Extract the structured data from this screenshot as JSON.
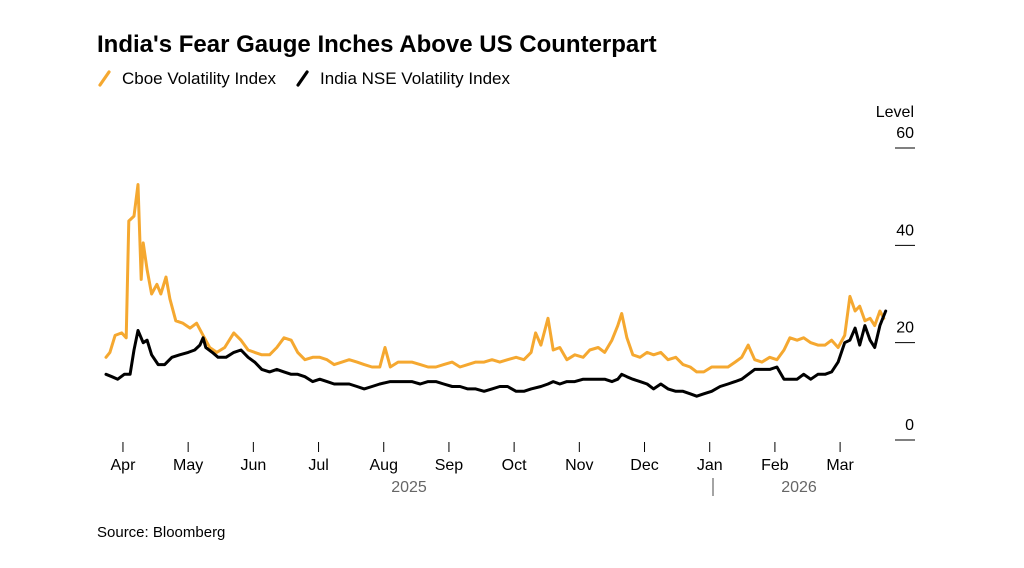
{
  "chart_data": {
    "type": "line",
    "title": "India's Fear Gauge Inches Above US Counterpart",
    "y_axis_label": "Level",
    "source": "Source: Bloomberg",
    "year_labels": [
      "2025",
      "2026"
    ],
    "xlim": [
      3.7,
      15.75
    ],
    "xticks": [
      {
        "value": 4,
        "label": "Apr"
      },
      {
        "value": 5,
        "label": "May"
      },
      {
        "value": 6,
        "label": "Jun"
      },
      {
        "value": 7,
        "label": "Jul"
      },
      {
        "value": 8,
        "label": "Aug"
      },
      {
        "value": 9,
        "label": "Sep"
      },
      {
        "value": 10,
        "label": "Oct"
      },
      {
        "value": 11,
        "label": "Nov"
      },
      {
        "value": 12,
        "label": "Dec"
      },
      {
        "value": 13,
        "label": "Jan"
      },
      {
        "value": 14,
        "label": "Feb"
      },
      {
        "value": 15,
        "label": "Mar"
      }
    ],
    "ylim": [
      0,
      60
    ],
    "yticks": [
      0,
      20,
      40,
      60
    ],
    "series": [
      {
        "name": "Cboe Volatility Index",
        "color": "#f5a830",
        "x": [
          3.74,
          3.8,
          3.88,
          3.98,
          4.05,
          4.09,
          4.17,
          4.23,
          4.28,
          4.31,
          4.37,
          4.44,
          4.52,
          4.58,
          4.66,
          4.72,
          4.81,
          4.92,
          5.03,
          5.13,
          5.23,
          5.33,
          5.44,
          5.56,
          5.7,
          5.81,
          5.92,
          6.02,
          6.13,
          6.25,
          6.36,
          6.47,
          6.58,
          6.68,
          6.79,
          6.91,
          7.02,
          7.13,
          7.24,
          7.36,
          7.47,
          7.59,
          7.7,
          7.82,
          7.94,
          8.02,
          8.1,
          8.22,
          8.33,
          8.43,
          8.56,
          8.68,
          8.8,
          8.92,
          9.05,
          9.17,
          9.29,
          9.41,
          9.54,
          9.66,
          9.78,
          9.9,
          10.03,
          10.15,
          10.26,
          10.33,
          10.41,
          10.52,
          10.6,
          10.7,
          10.81,
          10.93,
          11.06,
          11.16,
          11.29,
          11.39,
          11.5,
          11.59,
          11.65,
          11.73,
          11.82,
          11.93,
          12.04,
          12.14,
          12.25,
          12.36,
          12.48,
          12.59,
          12.7,
          12.8,
          12.91,
          13.03,
          13.16,
          13.28,
          13.39,
          13.49,
          13.59,
          13.69,
          13.8,
          13.92,
          14.03,
          14.14,
          14.23,
          14.34,
          14.44,
          14.55,
          14.66,
          14.77,
          14.87,
          14.97,
          15.07,
          15.15,
          15.23,
          15.3,
          15.38,
          15.46,
          15.53,
          15.61,
          15.67
        ],
        "values": [
          17,
          18,
          21.5,
          22,
          21,
          45,
          46,
          52.5,
          33,
          40.5,
          35,
          30,
          32,
          30,
          33.5,
          29,
          24.5,
          24,
          23,
          24,
          21.5,
          19,
          18,
          19,
          22,
          20.5,
          18.5,
          18,
          17.5,
          17.5,
          19,
          21,
          20.5,
          18,
          16.5,
          17,
          17,
          16.5,
          15.5,
          16,
          16.5,
          16,
          15.5,
          15,
          15,
          19,
          15,
          16,
          16,
          16,
          15.5,
          15,
          15,
          15.5,
          16,
          15,
          15.5,
          16,
          16,
          16.5,
          16,
          16.5,
          17,
          16.5,
          18,
          22,
          19.5,
          25,
          18.5,
          19,
          16.5,
          17.5,
          17,
          18.5,
          19,
          18,
          20.5,
          23.5,
          26,
          21,
          17.5,
          17,
          18,
          17.5,
          18,
          16.5,
          17,
          15.5,
          15,
          14,
          14,
          15,
          15,
          15,
          16,
          17,
          19.5,
          16.5,
          16,
          17,
          16.5,
          18.5,
          21,
          20.5,
          21,
          20,
          19.5,
          19.5,
          20.5,
          19,
          21.5,
          29.5,
          26.5,
          27.5,
          24.5,
          25,
          23.5,
          26.5,
          25
        ]
      },
      {
        "name": "India NSE Volatility Index",
        "color": "#000000",
        "x": [
          3.74,
          3.83,
          3.92,
          4.02,
          4.11,
          4.17,
          4.23,
          4.31,
          4.37,
          4.44,
          4.54,
          4.64,
          4.75,
          4.87,
          5.0,
          5.1,
          5.18,
          5.23,
          5.27,
          5.37,
          5.46,
          5.58,
          5.7,
          5.81,
          5.92,
          6.02,
          6.13,
          6.25,
          6.36,
          6.47,
          6.58,
          6.68,
          6.79,
          6.91,
          7.02,
          7.13,
          7.24,
          7.36,
          7.47,
          7.59,
          7.7,
          7.82,
          7.94,
          8.1,
          8.22,
          8.33,
          8.43,
          8.56,
          8.68,
          8.8,
          8.92,
          9.05,
          9.17,
          9.29,
          9.41,
          9.54,
          9.66,
          9.78,
          9.9,
          10.03,
          10.15,
          10.26,
          10.41,
          10.52,
          10.6,
          10.7,
          10.81,
          10.93,
          11.06,
          11.16,
          11.29,
          11.39,
          11.5,
          11.59,
          11.65,
          11.73,
          11.82,
          11.93,
          12.04,
          12.14,
          12.25,
          12.36,
          12.48,
          12.59,
          12.7,
          12.8,
          12.91,
          13.03,
          13.16,
          13.28,
          13.39,
          13.49,
          13.59,
          13.69,
          13.8,
          13.92,
          14.03,
          14.14,
          14.23,
          14.34,
          14.44,
          14.55,
          14.66,
          14.77,
          14.87,
          14.97,
          15.07,
          15.15,
          15.23,
          15.3,
          15.38,
          15.46,
          15.53,
          15.61,
          15.7
        ],
        "values": [
          13.5,
          13,
          12.5,
          13.5,
          13.5,
          18.5,
          22.5,
          20,
          20.5,
          17.5,
          15.5,
          15.5,
          17,
          17.5,
          18,
          18.5,
          19.5,
          21,
          19,
          18,
          17,
          17,
          18,
          18.5,
          17,
          16,
          14.5,
          14,
          14.5,
          14,
          13.5,
          13.5,
          13,
          12,
          12.5,
          12,
          11.5,
          11.5,
          11.5,
          11,
          10.5,
          11,
          11.5,
          12,
          12,
          12,
          12,
          11.5,
          12,
          12,
          11.5,
          11,
          11,
          10.5,
          10.5,
          10,
          10.5,
          11,
          11,
          10,
          10,
          10.5,
          11,
          11.5,
          12,
          11.5,
          12,
          12,
          12.5,
          12.5,
          12.5,
          12.5,
          12,
          12.5,
          13.5,
          13,
          12.5,
          12,
          11.5,
          10.5,
          11.5,
          10.5,
          10,
          10,
          9.5,
          9,
          9.5,
          10,
          11,
          11.5,
          12,
          12.5,
          13.5,
          14.5,
          14.5,
          14.5,
          15,
          12.5,
          12.5,
          12.5,
          13.5,
          12.5,
          13.5,
          13.5,
          14,
          16,
          20,
          20.5,
          23,
          19.5,
          23.5,
          20.5,
          19,
          23.5,
          26.5
        ]
      }
    ]
  }
}
